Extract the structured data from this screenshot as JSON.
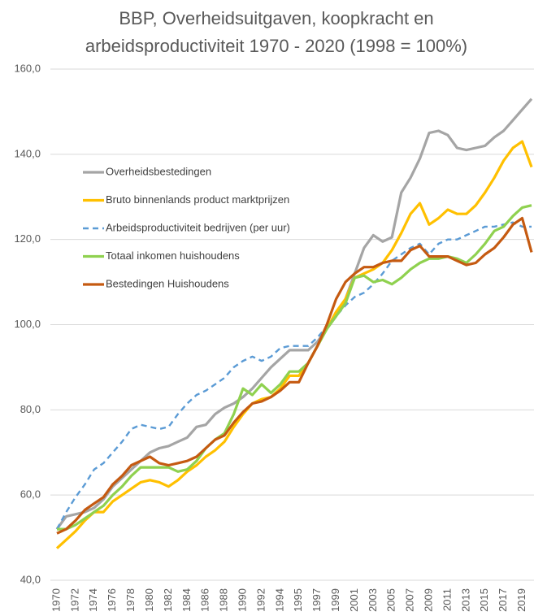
{
  "chart_data": {
    "type": "line",
    "title": [
      "BBP, Overheidsuitgaven, koopkracht en",
      "arbeidsproductiviteit 1970 - 2020 (1998 = 100%)"
    ],
    "categories": [
      "1970",
      null,
      "1972",
      null,
      "1974",
      null,
      "1976",
      null,
      "1978",
      null,
      "1980",
      null,
      "1982",
      null,
      "1984",
      null,
      "1986",
      null,
      "1988",
      null,
      "1990",
      null,
      "1992",
      null,
      "1994",
      null,
      "1995",
      null,
      "1997",
      null,
      "1999",
      null,
      "2001",
      null,
      "2003",
      null,
      "2005",
      null,
      "2007",
      null,
      "2009",
      null,
      "2011",
      null,
      "2013",
      null,
      "2015",
      null,
      "2017",
      null,
      "2019",
      null
    ],
    "series": [
      {
        "name": "Overheidsbestedingen",
        "color": "#a5a5a5",
        "dash": false,
        "values": [
          52,
          55,
          55.5,
          56,
          57,
          59,
          62,
          64,
          66,
          68,
          70,
          71,
          71.5,
          72.5,
          73.5,
          76,
          76.5,
          79,
          80.5,
          81.5,
          83,
          85,
          87.5,
          90,
          92,
          94,
          94,
          94,
          96,
          99,
          102,
          106,
          112,
          118,
          121,
          119.5,
          120.5,
          131,
          134.5,
          139,
          145,
          145.5,
          144.5,
          141.5,
          141,
          141.5,
          142,
          144,
          145.5,
          148,
          150.5,
          153
        ]
      },
      {
        "name": "Bruto binnenlands product marktprijzen",
        "color": "#ffc000",
        "dash": false,
        "values": [
          47.5,
          49.5,
          51.5,
          54,
          56,
          56,
          58.5,
          60,
          61.5,
          63,
          63.5,
          63,
          62,
          63.5,
          65.5,
          67,
          69,
          70.5,
          72.5,
          76,
          79,
          81.5,
          82.5,
          83,
          85,
          88,
          88,
          91,
          95,
          99,
          103,
          106,
          111,
          112,
          113,
          114.5,
          117.5,
          121.5,
          126,
          128.5,
          123.5,
          125,
          127,
          126,
          126,
          128,
          131,
          134.5,
          138.5,
          141.5,
          143,
          137
        ]
      },
      {
        "name": "Arbeidsproductiviteit bedrijven (per uur)",
        "color": "#5b9bd5",
        "dash": true,
        "values": [
          52,
          56,
          59.5,
          62.5,
          66,
          67.5,
          70,
          72.5,
          75.5,
          76.5,
          76,
          75.5,
          76,
          79,
          81.5,
          83.5,
          84.5,
          86,
          87.5,
          90,
          91.5,
          92.5,
          91.5,
          92.5,
          94.5,
          95,
          95,
          95,
          97,
          99.5,
          102,
          104.5,
          106.5,
          107.5,
          109.5,
          112,
          115,
          116.5,
          118,
          119,
          116.5,
          119,
          120,
          120,
          121,
          122,
          123,
          123,
          123.5,
          124,
          123,
          123
        ]
      },
      {
        "name": "Totaal inkomen huishoudens",
        "color": "#8fd14f",
        "dash": false,
        "values": [
          52,
          52,
          53,
          54.5,
          56,
          57.5,
          60,
          62,
          64.5,
          66.5,
          66.5,
          66.5,
          66.5,
          65.5,
          66,
          68,
          71,
          73,
          74.5,
          79,
          85,
          83.5,
          86,
          84,
          86,
          89,
          89,
          91,
          95,
          99,
          102,
          105,
          111,
          111.5,
          110,
          110.5,
          109.5,
          111,
          113,
          114.5,
          115.5,
          115.5,
          116,
          115.5,
          114.5,
          116.5,
          119,
          122,
          123,
          125.5,
          127.5,
          128
        ]
      },
      {
        "name": "Bestedingen Huishoudens",
        "color": "#c55a11",
        "dash": false,
        "values": [
          51,
          52,
          54,
          56.5,
          58,
          59.5,
          62.5,
          64.5,
          67,
          68,
          69,
          67.5,
          67,
          67.5,
          68,
          69,
          71,
          73,
          74,
          77,
          79.5,
          81.5,
          82,
          83,
          84.5,
          86.5,
          86.5,
          91,
          95,
          100,
          106,
          110,
          112,
          113.5,
          113.5,
          114.5,
          115,
          115,
          117.5,
          118.5,
          116,
          116,
          116,
          115,
          114,
          114.5,
          116.5,
          118,
          120.5,
          123.5,
          125,
          117
        ]
      }
    ],
    "ylim": [
      40,
      160
    ],
    "yticks": [
      {
        "value": 40,
        "label": "40,0"
      },
      {
        "value": 60,
        "label": "60,0"
      },
      {
        "value": 80,
        "label": "80,0"
      },
      {
        "value": 100,
        "label": "100,0"
      },
      {
        "value": 120,
        "label": "120,0"
      },
      {
        "value": 140,
        "label": "140,0"
      },
      {
        "value": 160,
        "label": "160,0"
      }
    ],
    "grid": true,
    "legend": "upper-left"
  }
}
